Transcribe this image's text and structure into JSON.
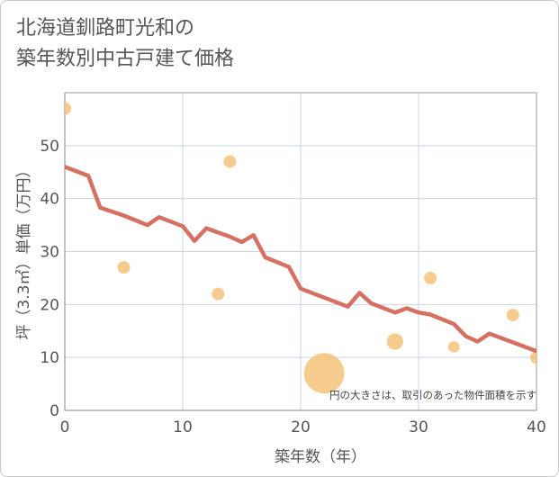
{
  "title_lines": [
    "北海道釧路町光和の",
    "築年数別中古戸建て価格"
  ],
  "chart_data": {
    "type": "line+scatter",
    "xlabel": "築年数（年）",
    "ylabel": "坪（3.3㎡）単価（万円）",
    "xlim": [
      0,
      40
    ],
    "ylim": [
      0,
      60
    ],
    "xticks": [
      0,
      10,
      20,
      30,
      40
    ],
    "yticks": [
      0,
      10,
      20,
      30,
      40,
      50
    ],
    "grid": true,
    "note": "円の大きさは、取引のあった物件面積を示す",
    "line_color": "#d57063",
    "bubble_color": "#f5c27a",
    "trend_line": {
      "x": [
        0,
        2,
        3,
        5,
        7,
        8,
        10,
        11,
        12,
        14,
        15,
        16,
        17,
        19,
        20,
        24,
        25,
        26,
        28,
        29,
        30,
        31,
        33,
        34,
        35,
        36,
        40
      ],
      "y": [
        46,
        44.3,
        38.3,
        36.8,
        35,
        36.5,
        34.8,
        32,
        34.4,
        32.8,
        31.8,
        33.1,
        28.9,
        27.1,
        23,
        19.6,
        22.2,
        20.2,
        18.5,
        19.3,
        18.5,
        18.1,
        16.3,
        14,
        13,
        14.5,
        11.2
      ]
    },
    "scatter": {
      "x": [
        0,
        5,
        13,
        14,
        22,
        28,
        31,
        33,
        38,
        40
      ],
      "y": [
        57,
        27,
        22,
        47,
        7,
        13,
        25,
        12,
        18,
        10
      ],
      "size": [
        1,
        1,
        1,
        1,
        3.2,
        1.3,
        1,
        0.9,
        1,
        1
      ]
    }
  }
}
